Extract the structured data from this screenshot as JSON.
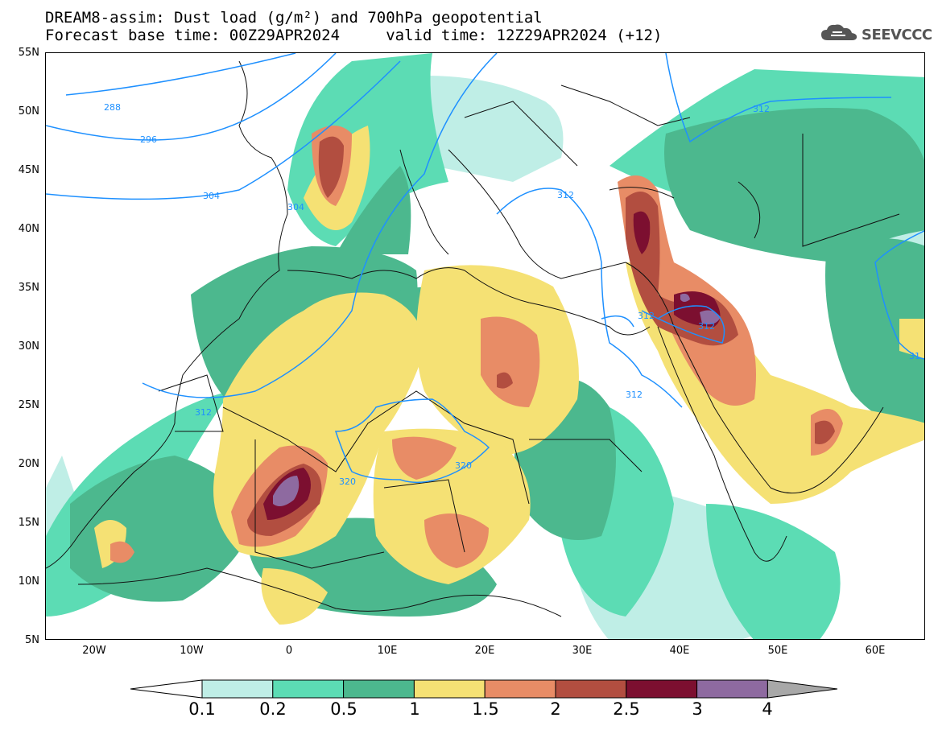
{
  "header": {
    "title_line1": "DREAM8-assim: Dust load (g/m²) and 700hPa geopotential",
    "title_line2": "Forecast base time: 00Z29APR2024     valid time: 12Z29APR2024 (+12)"
  },
  "logo": {
    "text": "SEEVCCC",
    "icon": "cloud-icon"
  },
  "map": {
    "lat_labels": [
      "55N",
      "50N",
      "45N",
      "40N",
      "35N",
      "30N",
      "25N",
      "20N",
      "15N",
      "10N",
      "5N"
    ],
    "lon_labels": [
      "20W",
      "10W",
      "0",
      "10E",
      "20E",
      "30E",
      "40E",
      "50E",
      "60E"
    ],
    "contour_labels": [
      "288",
      "296",
      "304",
      "304",
      "312",
      "312",
      "312",
      "312",
      "312",
      "312",
      "320",
      "320",
      "31"
    ]
  },
  "colorbar": {
    "levels": [
      "0.1",
      "0.2",
      "0.5",
      "1",
      "1.5",
      "2",
      "2.5",
      "3",
      "4"
    ],
    "colors": [
      "#ffffff",
      "#bfeee6",
      "#5cdcb4",
      "#4cb88e",
      "#f5e174",
      "#e88c66",
      "#b24e40",
      "#7c0f30",
      "#8e6aa0",
      "#a8a8a8"
    ]
  }
}
